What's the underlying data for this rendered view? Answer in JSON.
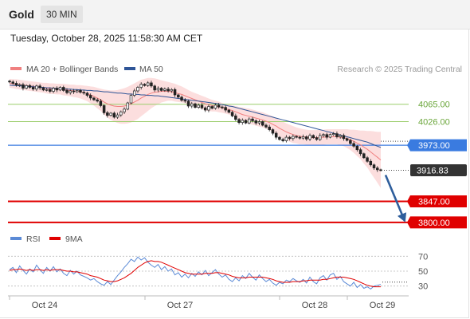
{
  "header": {
    "symbol": "Gold",
    "timeframe": "30 MIN"
  },
  "timestamp": "Tuesday, October 28, 2025 11:58:30 AM CET",
  "legend": {
    "bollinger_label": "MA 20 + Bollinger Bands",
    "ma50_label": "MA 50",
    "rsi_label": "RSI",
    "ma9_label": "9MA"
  },
  "copyright": "Research © 2025 Trading Central",
  "colors": {
    "bollinger": "#f08080",
    "bollinger_band_fill": "#fcdede",
    "ma50": "#2f5597",
    "support_line": "#e00000",
    "resistance_line": "#9acd6a",
    "pivot_line": "#3a7be0",
    "current_price_tag": "#333333",
    "arrow": "#2e5e9c",
    "rsi": "#5b8ad6",
    "ma9": "#e00000",
    "candle": "#222222"
  },
  "chart_data": [
    {
      "type": "candlestick",
      "title": "",
      "x_tick_labels": [
        "Oct 24",
        "Oct 27",
        "Oct 28",
        "Oct 29"
      ],
      "ylim": [
        3780,
        4120
      ],
      "levels": [
        {
          "label": "4065.00",
          "value": 4065.0,
          "kind": "resistance"
        },
        {
          "label": "4026.00",
          "value": 4026.0,
          "kind": "resistance"
        },
        {
          "label": "3973.00",
          "value": 3973.0,
          "kind": "pivot"
        },
        {
          "label": "3916.83",
          "value": 3916.83,
          "kind": "current"
        },
        {
          "label": "3847.00",
          "value": 3847.0,
          "kind": "support"
        },
        {
          "label": "3800.00",
          "value": 3800.0,
          "kind": "support"
        }
      ],
      "close": [
        4115,
        4112,
        4108,
        4109,
        4101,
        4107,
        4103,
        4099,
        4106,
        4102,
        4097,
        4098,
        4094,
        4101,
        4097,
        4103,
        4096,
        4091,
        4095,
        4093,
        4096,
        4092,
        4090,
        4085,
        4079,
        4075,
        4072,
        4062,
        4046,
        4040,
        4045,
        4036,
        4041,
        4048,
        4054,
        4068,
        4085,
        4095,
        4103,
        4110,
        4107,
        4113,
        4106,
        4097,
        4101,
        4096,
        4099,
        4095,
        4098,
        4086,
        4081,
        4074,
        4072,
        4061,
        4066,
        4058,
        4063,
        4057,
        4052,
        4060,
        4056,
        4063,
        4059,
        4058,
        4052,
        4047,
        4039,
        4031,
        4024,
        4029,
        4023,
        4032,
        4028,
        4023,
        4026,
        4018,
        4014,
        4008,
        4000,
        3991,
        3986,
        3983,
        3991,
        3988,
        3993,
        3991,
        3989,
        3992,
        3987,
        3995,
        3990,
        3986,
        3995,
        3997,
        3991,
        3997,
        3999,
        3992,
        3995,
        3988,
        3984,
        3977,
        3971,
        3963,
        3954,
        3945,
        3937,
        3929,
        3922,
        3918,
        3916.83
      ],
      "ma20_bollinger": {
        "middle": [
          4112,
          4111,
          4110,
          4109,
          4108,
          4107,
          4106,
          4105,
          4104,
          4103,
          4102,
          4101,
          4100,
          4100,
          4099,
          4099,
          4098,
          4097,
          4096,
          4095,
          4094,
          4093,
          4091,
          4089,
          4086,
          4083,
          4079,
          4075,
          4070,
          4066,
          4063,
          4061,
          4060,
          4060,
          4061,
          4063,
          4066,
          4070,
          4074,
          4079,
          4083,
          4087,
          4090,
          4092,
          4093,
          4094,
          4094,
          4094,
          4093,
          4091,
          4089,
          4087,
          4084,
          4081,
          4078,
          4075,
          4072,
          4069,
          4066,
          4064,
          4062,
          4061,
          4059,
          4057,
          4055,
          4053,
          4051,
          4048,
          4045,
          4042,
          4040,
          4038,
          4036,
          4034,
          4032,
          4030,
          4027,
          4024,
          4020,
          4016,
          4011,
          4007,
          4003,
          4000,
          3997,
          3995,
          3993,
          3992,
          3991,
          3990,
          3990,
          3990,
          3991,
          3991,
          3992,
          3992,
          3992,
          3992,
          3991,
          3990,
          3988,
          3985,
          3982,
          3978,
          3974,
          3969,
          3964,
          3958,
          3952,
          3946,
          3940
        ],
        "upper": [
          4122,
          4121,
          4121,
          4120,
          4119,
          4118,
          4117,
          4116,
          4115,
          4114,
          4113,
          4113,
          4112,
          4112,
          4111,
          4111,
          4111,
          4110,
          4109,
          4109,
          4108,
          4108,
          4107,
          4106,
          4105,
          4104,
          4102,
          4100,
          4098,
          4097,
          4096,
          4096,
          4097,
          4099,
          4101,
          4104,
          4108,
          4112,
          4116,
          4120,
          4122,
          4124,
          4124,
          4123,
          4121,
          4119,
          4117,
          4115,
          4113,
          4111,
          4108,
          4105,
          4101,
          4097,
          4093,
          4090,
          4087,
          4084,
          4081,
          4078,
          4075,
          4073,
          4071,
          4068,
          4066,
          4064,
          4062,
          4061,
          4059,
          4058,
          4056,
          4055,
          4053,
          4051,
          4049,
          4047,
          4044,
          4041,
          4038,
          4034,
          4030,
          4026,
          4022,
          4019,
          4016,
          4013,
          4011,
          4009,
          4008,
          4007,
          4007,
          4007,
          4008,
          4008,
          4009,
          4009,
          4009,
          4009,
          4009,
          4009,
          4009,
          4008,
          4008,
          4007,
          4006,
          4006,
          4005,
          4005,
          4004,
          4003,
          4003
        ],
        "lower": [
          4102,
          4101,
          4099,
          4098,
          4097,
          4096,
          4095,
          4094,
          4093,
          4092,
          4091,
          4089,
          4088,
          4088,
          4087,
          4087,
          4085,
          4084,
          4083,
          4081,
          4080,
          4078,
          4075,
          4072,
          4067,
          4062,
          4056,
          4050,
          4042,
          4035,
          4030,
          4026,
          4023,
          4021,
          4021,
          4022,
          4024,
          4028,
          4032,
          4038,
          4044,
          4050,
          4056,
          4061,
          4065,
          4069,
          4071,
          4073,
          4073,
          4071,
          4070,
          4069,
          4067,
          4065,
          4063,
          4060,
          4057,
          4054,
          4051,
          4050,
          4049,
          4049,
          4047,
          4046,
          4044,
          4042,
          4040,
          4035,
          4031,
          4026,
          4024,
          4021,
          4019,
          4017,
          4015,
          4013,
          4010,
          4007,
          4002,
          3998,
          3992,
          3988,
          3984,
          3981,
          3978,
          3977,
          3975,
          3975,
          3974,
          3973,
          3973,
          3973,
          3974,
          3974,
          3975,
          3975,
          3975,
          3975,
          3973,
          3971,
          3967,
          3962,
          3956,
          3949,
          3942,
          3932,
          3923,
          3911,
          3900,
          3889,
          3877
        ]
      },
      "ma50": [
        4108,
        4107,
        4107,
        4106,
        4106,
        4105,
        4105,
        4104,
        4104,
        4103,
        4103,
        4102,
        4102,
        4101,
        4101,
        4100,
        4100,
        4099,
        4099,
        4098,
        4098,
        4097,
        4097,
        4096,
        4096,
        4095,
        4095,
        4094,
        4093,
        4093,
        4092,
        4091,
        4090,
        4090,
        4089,
        4088,
        4088,
        4087,
        4087,
        4086,
        4086,
        4085,
        4085,
        4084,
        4084,
        4083,
        4082,
        4081,
        4080,
        4079,
        4078,
        4077,
        4076,
        4075,
        4074,
        4073,
        4072,
        4071,
        4070,
        4069,
        4068,
        4067,
        4066,
        4064,
        4063,
        4061,
        4060,
        4058,
        4056,
        4054,
        4052,
        4050,
        4048,
        4046,
        4044,
        4042,
        4040,
        4038,
        4036,
        4034,
        4032,
        4030,
        4028,
        4026,
        4024,
        4022,
        4020,
        4018,
        4016,
        4014,
        4012,
        4010,
        4008,
        4006,
        4004,
        4002,
        4000,
        3998,
        3996,
        3994,
        3992,
        3990,
        3988,
        3986,
        3984,
        3982,
        3980,
        3977,
        3974,
        3971,
        3968
      ],
      "projection": {
        "from": 3916.83,
        "to": 3800.0
      }
    },
    {
      "type": "line",
      "title": "",
      "series_names": [
        "RSI",
        "9MA"
      ],
      "ylim": [
        20,
        80
      ],
      "y_tick_labels": [
        "70",
        "50",
        "30"
      ],
      "y_ticks": [
        70,
        50,
        30
      ],
      "rsi": [
        52,
        55,
        48,
        57,
        51,
        46,
        53,
        49,
        58,
        52,
        47,
        55,
        50,
        56,
        49,
        53,
        47,
        44,
        51,
        46,
        50,
        45,
        43,
        41,
        38,
        40,
        36,
        33,
        31,
        36,
        32,
        38,
        44,
        49,
        55,
        60,
        66,
        63,
        69,
        65,
        68,
        62,
        58,
        55,
        59,
        52,
        56,
        50,
        53,
        45,
        48,
        42,
        46,
        41,
        47,
        43,
        49,
        45,
        51,
        44,
        48,
        52,
        46,
        42,
        45,
        39,
        36,
        41,
        37,
        44,
        40,
        47,
        42,
        38,
        45,
        40,
        36,
        39,
        34,
        31,
        35,
        33,
        38,
        36,
        40,
        37,
        35,
        39,
        34,
        42,
        36,
        33,
        41,
        44,
        38,
        45,
        47,
        39,
        43,
        36,
        33,
        30,
        35,
        28,
        32,
        27,
        29,
        26,
        30,
        31,
        32
      ],
      "ma9": [
        51,
        52,
        52,
        53,
        52,
        51,
        52,
        51,
        52,
        52,
        51,
        52,
        51,
        52,
        52,
        52,
        51,
        50,
        50,
        49,
        49,
        48,
        47,
        46,
        44,
        43,
        42,
        40,
        38,
        37,
        36,
        36,
        37,
        39,
        41,
        44,
        47,
        51,
        55,
        58,
        61,
        63,
        64,
        63,
        63,
        62,
        60,
        58,
        56,
        54,
        52,
        50,
        48,
        47,
        46,
        46,
        46,
        46,
        47,
        47,
        47,
        48,
        48,
        47,
        46,
        45,
        43,
        42,
        41,
        41,
        41,
        42,
        42,
        42,
        42,
        42,
        41,
        40,
        39,
        37,
        36,
        35,
        35,
        35,
        36,
        36,
        36,
        37,
        37,
        38,
        38,
        38,
        38,
        39,
        39,
        40,
        41,
        42,
        42,
        42,
        41,
        40,
        39,
        37,
        35,
        33,
        31,
        30,
        29,
        29,
        29
      ]
    }
  ]
}
